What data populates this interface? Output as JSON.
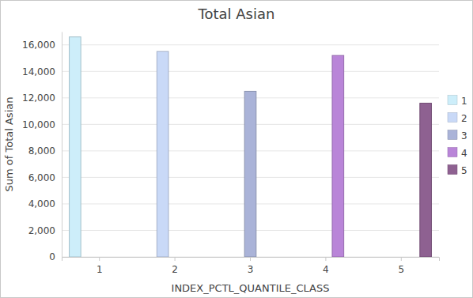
{
  "chart_data": {
    "type": "bar",
    "title": "Total Asian",
    "x_label": "INDEX_PCTL_QUANTILE_CLASS",
    "y_label": "Sum of Total Asian",
    "categories": [
      "1",
      "2",
      "3",
      "4",
      "5"
    ],
    "values": [
      16600,
      15500,
      12500,
      15200,
      11600
    ],
    "colors": [
      "#cdeefa",
      "#c9d9f7",
      "#aab3d8",
      "#b985d8",
      "#8e6191"
    ],
    "ylim": [
      0,
      17000
    ],
    "yticks": [
      0,
      {
        "value": 2000,
        "label": "2,000"
      },
      {
        "value": 4000,
        "label": "4,000"
      },
      {
        "value": 6000,
        "label": "6,000"
      },
      {
        "value": 8000,
        "label": "8,000"
      },
      {
        "value": 10000,
        "label": "10,000"
      },
      {
        "value": 12000,
        "label": "12,000"
      },
      {
        "value": 14000,
        "label": "14,000"
      },
      {
        "value": 16000,
        "label": "16,000"
      }
    ],
    "grid": true,
    "legend": "right"
  }
}
